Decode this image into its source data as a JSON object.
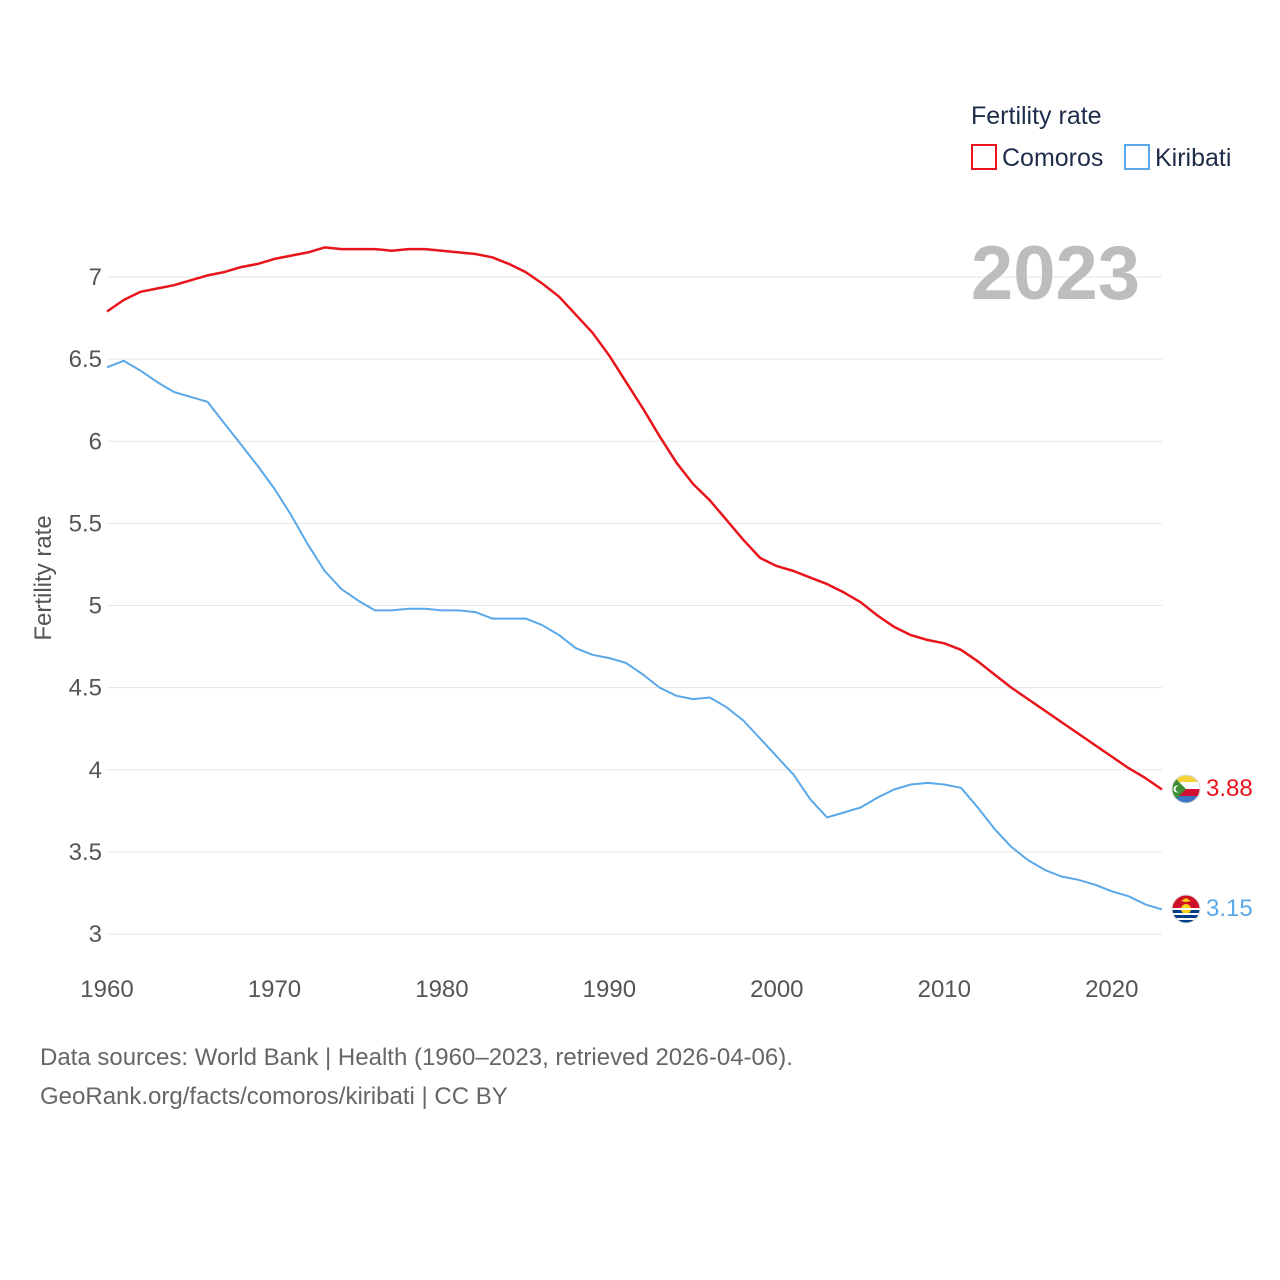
{
  "chart_data": {
    "type": "line",
    "title": "Fertility rate",
    "year_label": "2023",
    "xlabel": "",
    "ylabel": "Fertility rate",
    "xlim": [
      1960,
      2023
    ],
    "ylim": [
      3,
      7.2
    ],
    "x_ticks": [
      "1960",
      "1970",
      "1980",
      "1990",
      "2000",
      "2010",
      "2020"
    ],
    "y_ticks": [
      "3",
      "3.5",
      "4",
      "4.5",
      "5",
      "5.5",
      "6",
      "6.5",
      "7"
    ],
    "grid": true,
    "legend_position": "top-right",
    "x": [
      1960,
      1961,
      1962,
      1963,
      1964,
      1965,
      1966,
      1967,
      1968,
      1969,
      1970,
      1971,
      1972,
      1973,
      1974,
      1975,
      1976,
      1977,
      1978,
      1979,
      1980,
      1981,
      1982,
      1983,
      1984,
      1985,
      1986,
      1987,
      1988,
      1989,
      1990,
      1991,
      1992,
      1993,
      1994,
      1995,
      1996,
      1997,
      1998,
      1999,
      2000,
      2001,
      2002,
      2003,
      2004,
      2005,
      2006,
      2007,
      2008,
      2009,
      2010,
      2011,
      2012,
      2013,
      2014,
      2015,
      2016,
      2017,
      2018,
      2019,
      2020,
      2021,
      2022,
      2023
    ],
    "series": [
      {
        "name": "Comoros",
        "color": "#e8141c",
        "end_value": "3.88",
        "flag": "comoros-flag-icon",
        "values": [
          6.79,
          6.86,
          6.91,
          6.93,
          6.95,
          6.98,
          7.01,
          7.03,
          7.06,
          7.08,
          7.11,
          7.13,
          7.15,
          7.18,
          7.17,
          7.17,
          7.17,
          7.16,
          7.17,
          7.17,
          7.16,
          7.15,
          7.14,
          7.12,
          7.08,
          7.03,
          6.96,
          6.88,
          6.77,
          6.66,
          6.52,
          6.36,
          6.2,
          6.03,
          5.87,
          5.74,
          5.64,
          5.52,
          5.4,
          5.29,
          5.24,
          5.21,
          5.17,
          5.13,
          5.08,
          5.02,
          4.94,
          4.87,
          4.82,
          4.79,
          4.77,
          4.73,
          4.66,
          4.58,
          4.5,
          4.43,
          4.36,
          4.29,
          4.22,
          4.15,
          4.08,
          4.01,
          3.95,
          3.88
        ]
      },
      {
        "name": "Kiribati",
        "color": "#5aa8e8",
        "end_value": "3.15",
        "flag": "kiribati-flag-icon",
        "values": [
          6.45,
          6.49,
          6.43,
          6.36,
          6.3,
          6.27,
          6.24,
          6.11,
          5.98,
          5.85,
          5.71,
          5.55,
          5.37,
          5.21,
          5.1,
          5.03,
          4.97,
          4.97,
          4.98,
          4.98,
          4.97,
          4.97,
          4.96,
          4.92,
          4.92,
          4.92,
          4.88,
          4.82,
          4.74,
          4.7,
          4.68,
          4.65,
          4.58,
          4.5,
          4.45,
          4.43,
          4.44,
          4.38,
          4.3,
          4.19,
          4.08,
          3.97,
          3.82,
          3.71,
          3.74,
          3.77,
          3.83,
          3.88,
          3.91,
          3.92,
          3.91,
          3.89,
          3.77,
          3.64,
          3.53,
          3.45,
          3.39,
          3.35,
          3.33,
          3.3,
          3.26,
          3.23,
          3.18,
          3.15
        ]
      }
    ]
  },
  "footer": {
    "sources": "Data sources: World Bank | Health (1960–2023, retrieved 2026-04-06).",
    "credit": "GeoRank.org/facts/comoros/kiribati | CC BY"
  }
}
